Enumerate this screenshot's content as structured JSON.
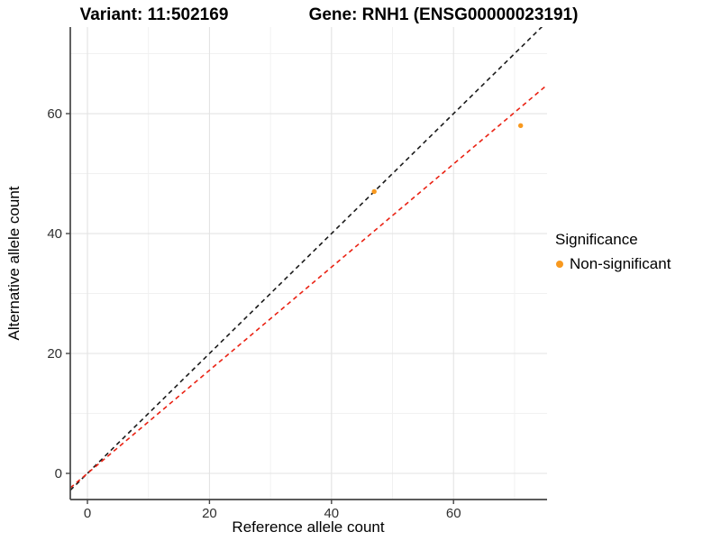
{
  "figure": {
    "title_left": "Variant: 11:502169",
    "title_right": "Gene: RNH1 (ENSG00000023191)"
  },
  "chart_data": {
    "type": "scatter",
    "xlabel": "Reference allele count",
    "ylabel": "Alternative allele count",
    "xlim": [
      -2.81,
      75.33
    ],
    "ylim": [
      -4.36,
      74.44
    ],
    "x_ticks": [
      0,
      20,
      40,
      60
    ],
    "y_ticks": [
      0,
      20,
      40,
      60
    ],
    "x_minor_ticks": [
      10,
      30,
      50,
      70
    ],
    "y_minor_ticks": [
      10,
      30,
      50,
      70
    ],
    "grid": "major-and-minor",
    "series": [
      {
        "name": "Non-significant",
        "color": "#F8991F",
        "points": [
          {
            "x": 47,
            "y": 47
          },
          {
            "x": 71,
            "y": 58
          }
        ]
      }
    ],
    "lines": [
      {
        "name": "identity-line",
        "slope": 1.0,
        "intercept": 0,
        "color": "#1A1A1A",
        "dash": "5,4"
      },
      {
        "name": "expected-ratio-line",
        "slope": 0.86,
        "intercept": 0,
        "color": "#EA2213",
        "dash": "5,4"
      }
    ],
    "legend": {
      "title": "Significance",
      "position": "right",
      "items": [
        {
          "label": "Non-significant",
          "color": "#F8991F"
        }
      ]
    },
    "colors": {
      "grid_major": "#E3E3E3",
      "grid_minor": "#F1F1F1",
      "axis_line": "#454545",
      "tick_text": "#303030"
    }
  }
}
